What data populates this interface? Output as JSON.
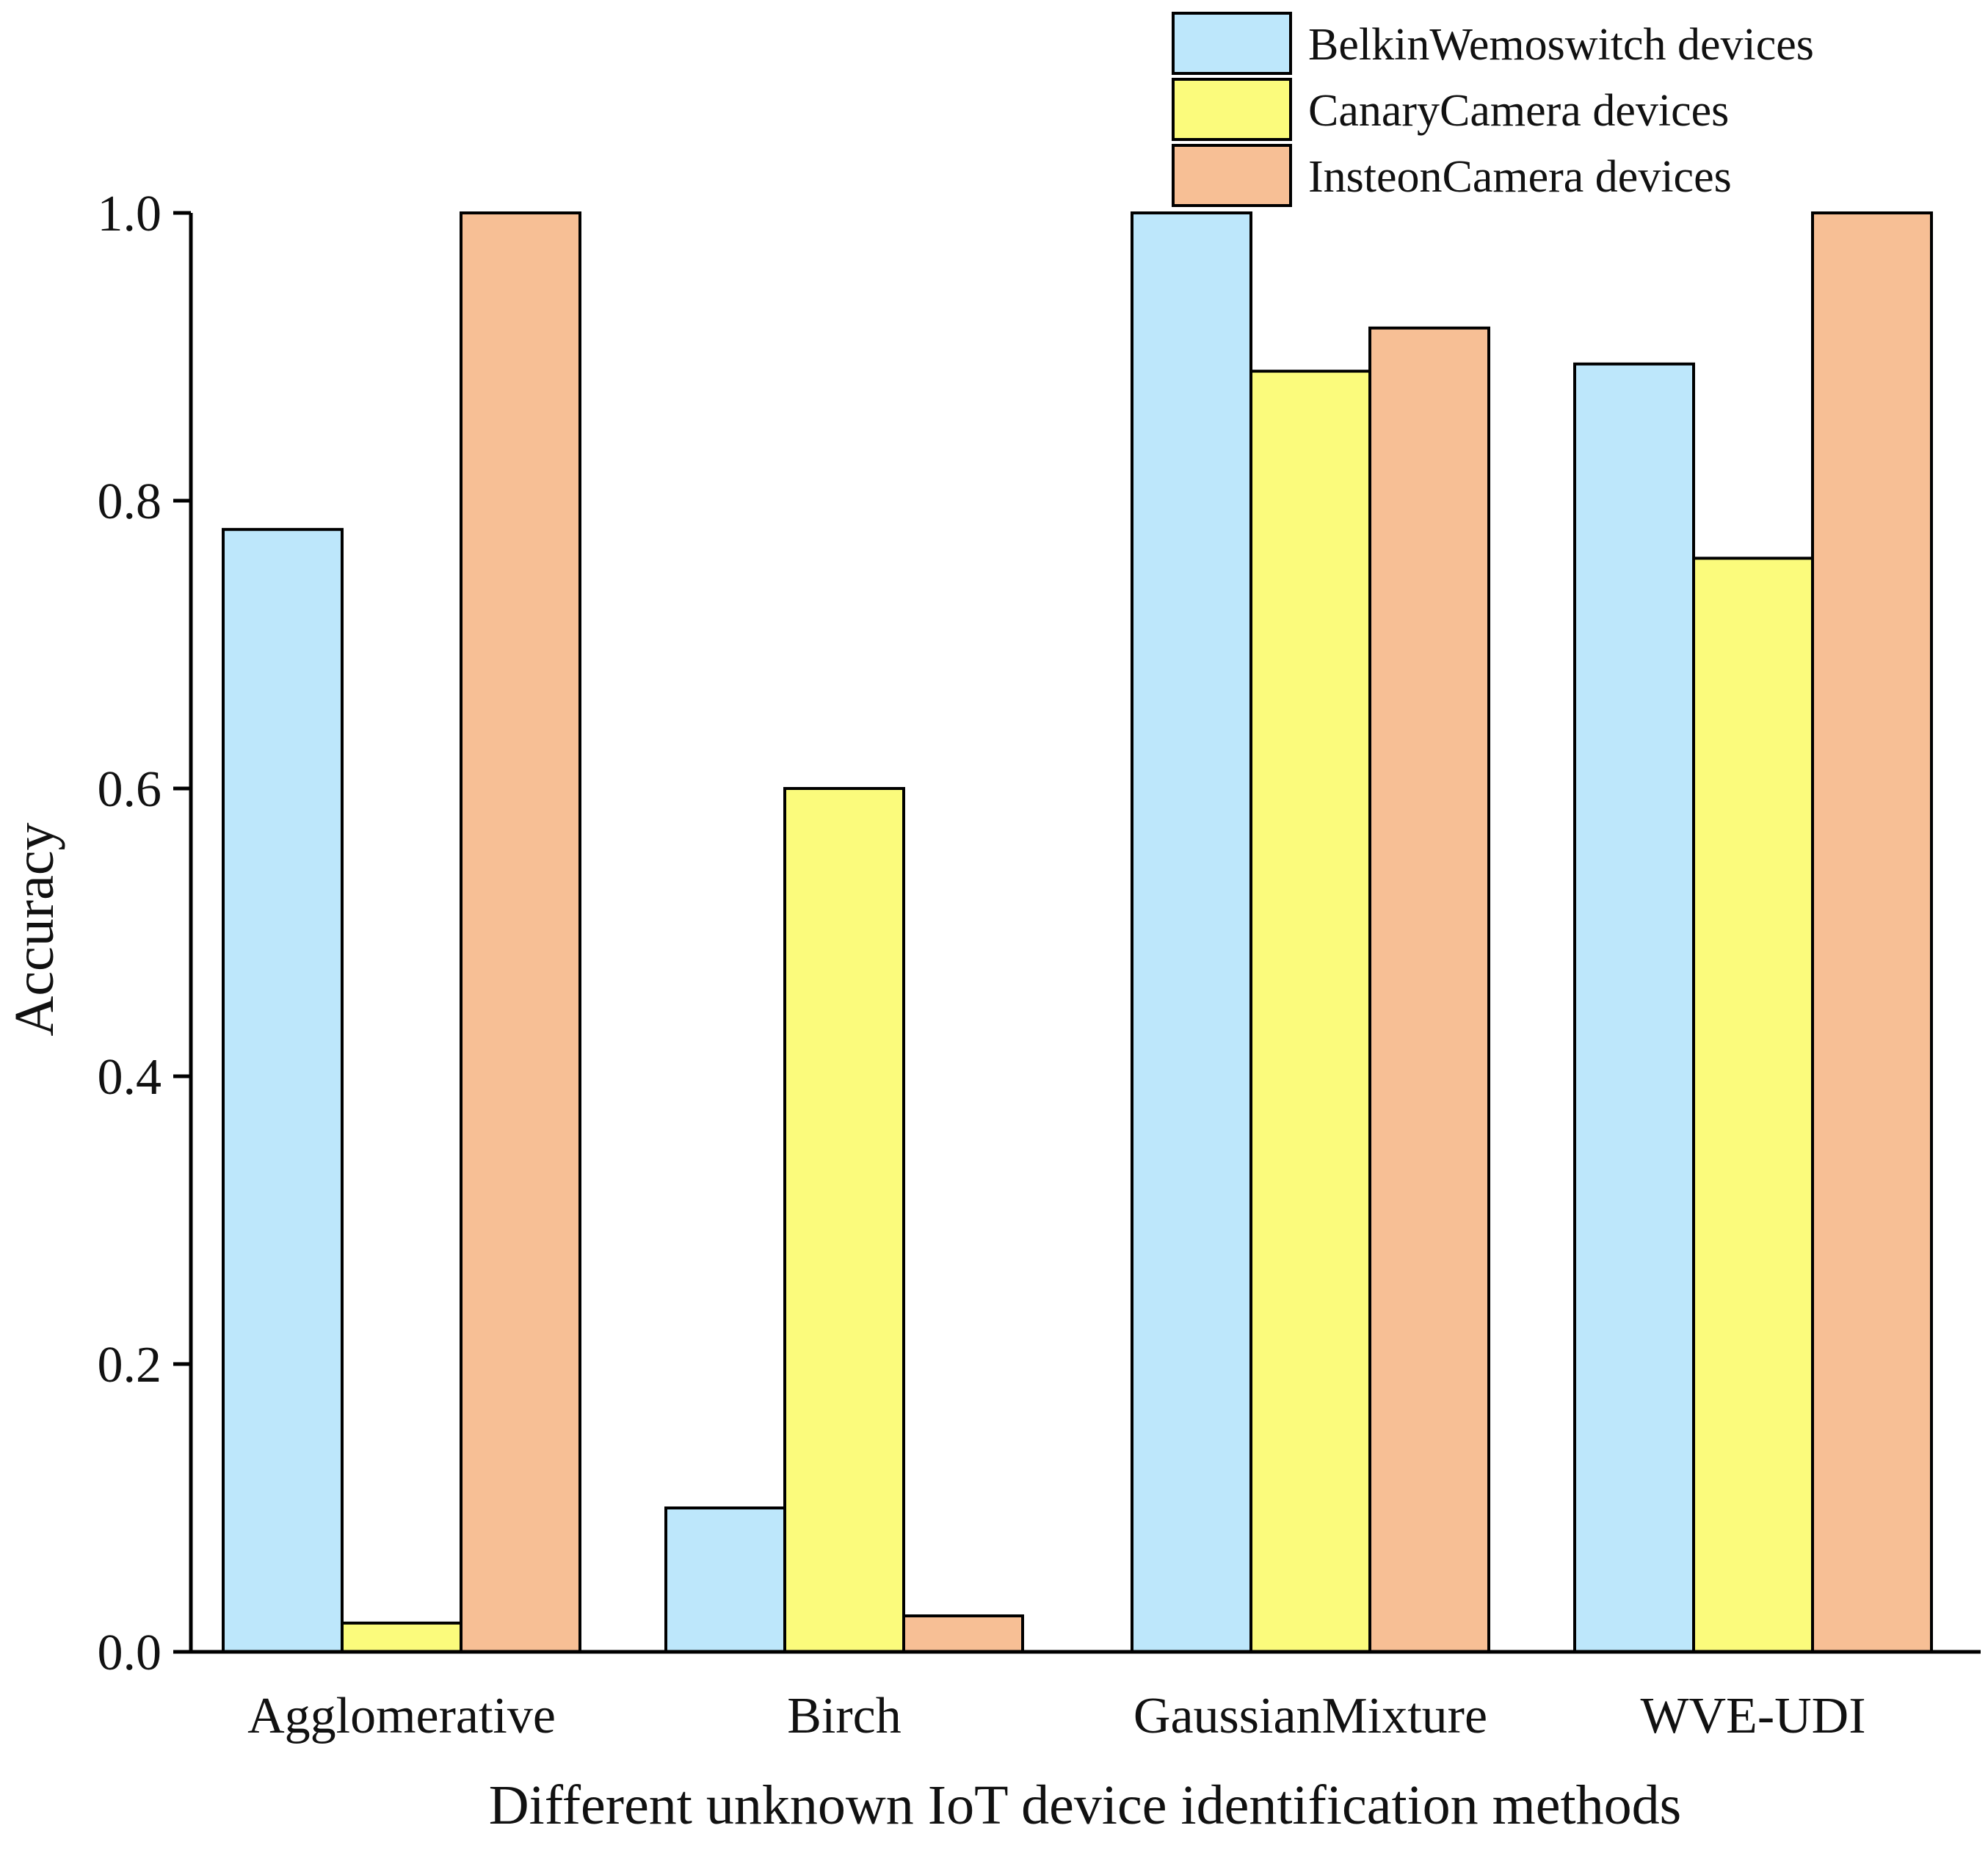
{
  "chart_data": {
    "type": "bar",
    "title": "",
    "xlabel": "Different unknown IoT device identification methods",
    "ylabel": "Accuracy",
    "ylim": [
      0,
      1.0
    ],
    "yticks": [
      "0.0",
      "0.2",
      "0.4",
      "0.6",
      "0.8",
      "1.0"
    ],
    "ytick_values": [
      0.0,
      0.2,
      0.4,
      0.6,
      0.8,
      1.0
    ],
    "categories": [
      "Agglomerative",
      "Birch",
      "GaussianMixture",
      "WVE-UDI"
    ],
    "series": [
      {
        "name": "BelkinWemoswitch devices",
        "color": "#bde7fb",
        "values": [
          0.78,
          0.1,
          1.0,
          0.895
        ]
      },
      {
        "name": "CanaryCamera devices",
        "color": "#fbfb7c",
        "values": [
          0.02,
          0.6,
          0.89,
          0.76
        ]
      },
      {
        "name": "InsteonCamera devices",
        "color": "#f7bf95",
        "values": [
          1.0,
          0.025,
          0.92,
          1.0
        ]
      }
    ],
    "legend_position": "top-right",
    "grid": false
  }
}
